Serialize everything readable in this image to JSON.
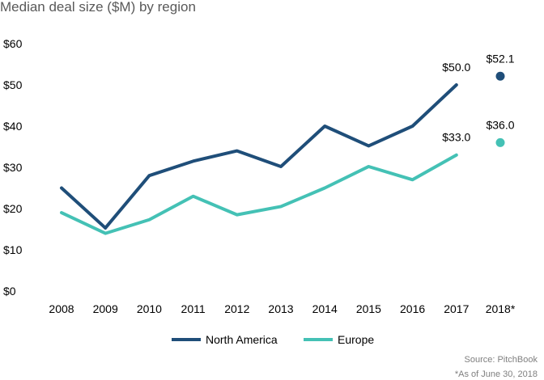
{
  "chart_data": {
    "type": "line",
    "title": "Median deal size ($M) by region",
    "categories": [
      "2008",
      "2009",
      "2010",
      "2011",
      "2012",
      "2013",
      "2014",
      "2015",
      "2016",
      "2017",
      "2018*"
    ],
    "ylim": [
      0,
      60
    ],
    "yticks": [
      "$0",
      "$10",
      "$20",
      "$30",
      "$40",
      "$50",
      "$60"
    ],
    "series": [
      {
        "name": "North America",
        "color": "#1f4e79",
        "values": [
          25.0,
          15.3,
          28.0,
          31.5,
          34.0,
          30.2,
          40.0,
          35.2,
          40.0,
          50.0,
          52.1
        ],
        "standalone_last_point": true,
        "labels": [
          {
            "index": 9,
            "text": "$50.0"
          },
          {
            "index": 10,
            "text": "$52.1"
          }
        ]
      },
      {
        "name": "Europe",
        "color": "#44c1b5",
        "values": [
          19.0,
          14.0,
          17.3,
          23.0,
          18.5,
          20.5,
          25.0,
          30.2,
          27.0,
          33.0,
          36.0
        ],
        "standalone_last_point": true,
        "labels": [
          {
            "index": 9,
            "text": "$33.0"
          },
          {
            "index": 10,
            "text": "$36.0"
          }
        ]
      }
    ],
    "grid": false,
    "legend_position": "bottom-center"
  },
  "footer": {
    "source": "Source: PitchBook",
    "note": "*As of June 30, 2018"
  }
}
